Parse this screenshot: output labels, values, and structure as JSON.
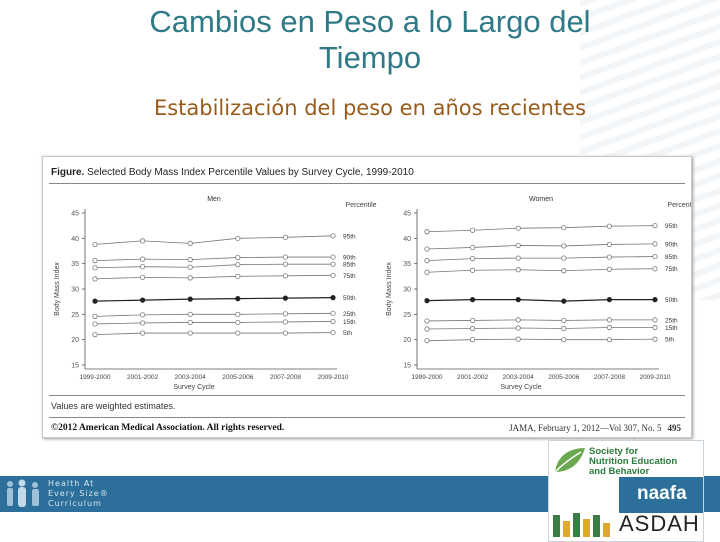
{
  "slide": {
    "title": "Cambios en Peso a lo Largo del Tiempo",
    "subtitle": "Estabilización del peso en años recientes"
  },
  "figure": {
    "caption_bold": "Figure.",
    "caption_text": "Selected Body Mass Index Percentile Values by Survey Cycle, 1999-2010",
    "note": "Values are weighted estimates.",
    "copyright": "©2012 American Medical Association. All rights reserved.",
    "citation": "JAMA, February 1, 2012—Vol 307, No. 5",
    "page": "495"
  },
  "chart_data": [
    {
      "type": "line",
      "title": "Men",
      "xlabel": "Survey Cycle",
      "ylabel": "Body Mass Index",
      "ylim": [
        15,
        45
      ],
      "yticks": [
        15,
        20,
        25,
        30,
        35,
        40,
        45
      ],
      "categories": [
        "1999-2000",
        "2001-2002",
        "2003-2004",
        "2005-2006",
        "2007-2008",
        "2009-2010"
      ],
      "legend_title": "Percentile",
      "series": [
        {
          "name": "95th",
          "values": [
            38.8,
            39.5,
            39.0,
            40.0,
            40.2,
            40.5
          ]
        },
        {
          "name": "90th",
          "values": [
            35.6,
            35.9,
            35.8,
            36.2,
            36.3,
            36.3
          ]
        },
        {
          "name": "85th",
          "values": [
            34.2,
            34.4,
            34.3,
            34.8,
            34.9,
            34.9
          ]
        },
        {
          "name": "75th",
          "values": [
            32.0,
            32.3,
            32.2,
            32.5,
            32.6,
            32.7
          ]
        },
        {
          "name": "50th",
          "values": [
            27.6,
            27.8,
            28.0,
            28.1,
            28.2,
            28.3
          ]
        },
        {
          "name": "25th",
          "values": [
            24.6,
            24.9,
            25.0,
            25.0,
            25.1,
            25.2
          ]
        },
        {
          "name": "15th",
          "values": [
            23.1,
            23.3,
            23.4,
            23.4,
            23.5,
            23.6
          ]
        },
        {
          "name": "5th",
          "values": [
            21.0,
            21.3,
            21.3,
            21.3,
            21.3,
            21.4
          ]
        }
      ]
    },
    {
      "type": "line",
      "title": "Women",
      "xlabel": "Survey Cycle",
      "ylabel": "Body Mass Index",
      "ylim": [
        15,
        45
      ],
      "yticks": [
        15,
        20,
        25,
        30,
        35,
        40,
        45
      ],
      "categories": [
        "1999-2000",
        "2001-2002",
        "2003-2004",
        "2005-2006",
        "2007-2008",
        "2009-2010"
      ],
      "legend_title": "Percentile",
      "series": [
        {
          "name": "95th",
          "values": [
            41.3,
            41.6,
            42.0,
            42.1,
            42.4,
            42.5
          ]
        },
        {
          "name": "90th",
          "values": [
            37.9,
            38.2,
            38.6,
            38.5,
            38.8,
            38.9
          ]
        },
        {
          "name": "85th",
          "values": [
            35.6,
            36.0,
            36.1,
            36.1,
            36.3,
            36.4
          ]
        },
        {
          "name": "75th",
          "values": [
            33.3,
            33.7,
            33.8,
            33.6,
            33.9,
            34.0
          ]
        },
        {
          "name": "50th",
          "values": [
            27.7,
            27.9,
            27.9,
            27.6,
            27.9,
            27.9
          ]
        },
        {
          "name": "25th",
          "values": [
            23.7,
            23.8,
            23.9,
            23.8,
            23.9,
            23.9
          ]
        },
        {
          "name": "15th",
          "values": [
            22.1,
            22.2,
            22.3,
            22.2,
            22.4,
            22.4
          ]
        },
        {
          "name": "5th",
          "values": [
            19.8,
            20.0,
            20.1,
            20.0,
            20.0,
            20.1
          ]
        }
      ]
    }
  ],
  "footer": {
    "haes_line1": "Health At",
    "haes_line2": "Every Size®",
    "haes_line3": "Curriculum",
    "sne_line1": "Society for",
    "sne_line2": "Nutrition Education",
    "sne_line3": "and Behavior",
    "naafa": "naafa",
    "asdah": "ASDAH",
    "colors": {
      "band": "#2b6f9a",
      "title": "#2f7a86",
      "subtitle": "#9a5b1a",
      "sne": "#2a7c3c"
    }
  }
}
